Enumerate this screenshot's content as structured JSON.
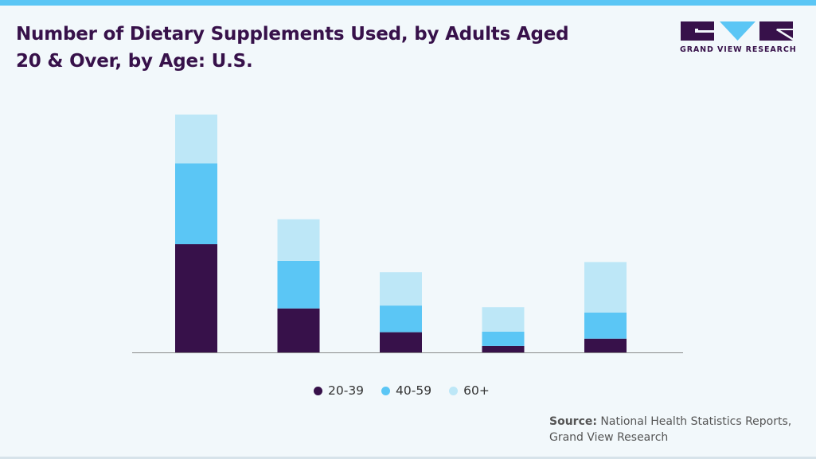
{
  "header": {
    "title": "Number of Dietary Supplements Used, by Adults Aged 20 & Over, by Age: U.S."
  },
  "logo": {
    "text": "GRAND VIEW RESEARCH"
  },
  "colors": {
    "accent_bar": "#5bc6f5",
    "series_20_39": "#37114a",
    "series_40_59": "#5bc6f5",
    "series_60_plus": "#bde7f7"
  },
  "chart_data": {
    "type": "bar",
    "stacked": true,
    "categories": [
      "",
      "",
      "",
      "",
      ""
    ],
    "series": [
      {
        "name": "20-39",
        "values": [
          45.5,
          18.5,
          8.5,
          2.7,
          5.8
        ]
      },
      {
        "name": "40-59",
        "values": [
          34.0,
          20.0,
          11.2,
          6.0,
          11.0
        ]
      },
      {
        "name": "60+",
        "values": [
          20.5,
          17.5,
          14.0,
          10.3,
          21.2
        ]
      }
    ],
    "ylim": [
      0,
      100
    ],
    "grid": false,
    "legend": "bottom"
  },
  "legend": {
    "items": [
      {
        "label": "20-39",
        "color": "#37114a"
      },
      {
        "label": "40-59",
        "color": "#5bc6f5"
      },
      {
        "label": "60+",
        "color": "#bde7f7"
      }
    ]
  },
  "source": {
    "label": "Source:",
    "text": " National Health Statistics Reports, Grand View Research"
  }
}
